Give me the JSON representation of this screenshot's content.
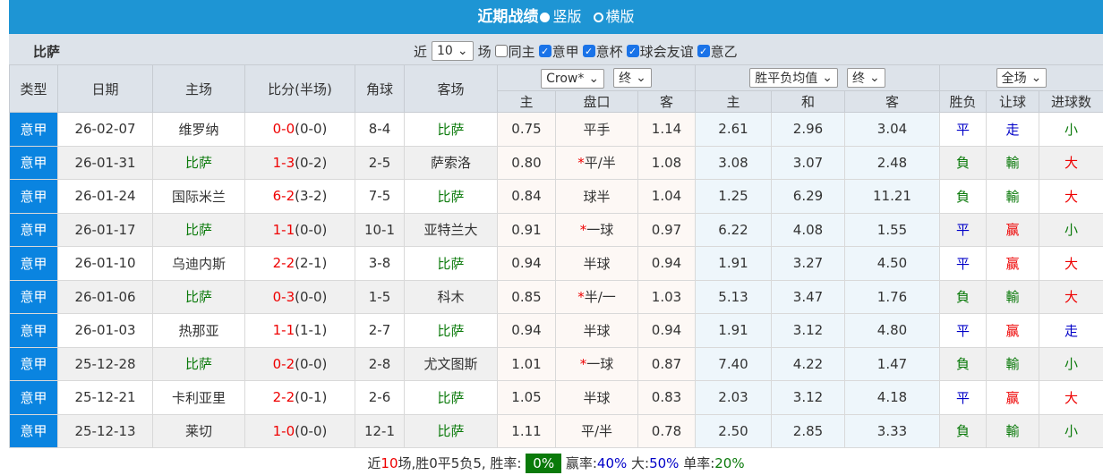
{
  "title": "近期战绩",
  "view_options": [
    {
      "label": "竖版",
      "selected": true
    },
    {
      "label": "横版",
      "selected": false
    }
  ],
  "filter": {
    "team": "比萨",
    "prefix": "近",
    "count": "10",
    "suffix": "场",
    "checkboxes": [
      {
        "label": "同主",
        "checked": false
      },
      {
        "label": "意甲",
        "checked": true
      },
      {
        "label": "意杯",
        "checked": true
      },
      {
        "label": "球会友谊",
        "checked": true
      },
      {
        "label": "意乙",
        "checked": true
      }
    ]
  },
  "headers": {
    "type": "类型",
    "date": "日期",
    "home": "主场",
    "score": "比分(半场)",
    "corner": "角球",
    "away": "客场",
    "company": "Crow*",
    "odds_time1": "终",
    "avg": "胜平负均值",
    "odds_time2": "终",
    "period": "全场",
    "sub": [
      "主",
      "盘口",
      "客",
      "主",
      "和",
      "客",
      "胜负",
      "让球",
      "进球数"
    ]
  },
  "rows": [
    [
      "意甲",
      "26-02-07",
      "维罗纳",
      "0-0",
      "(0-0)",
      "8-4",
      "比萨",
      "0.75",
      "",
      "平手",
      "1.14",
      "2.61",
      "2.96",
      "3.04",
      "平",
      "走",
      "小"
    ],
    [
      "意甲",
      "26-01-31",
      "比萨",
      "1-3",
      "(0-2)",
      "2-5",
      "萨索洛",
      "0.80",
      "*",
      "平/半",
      "1.08",
      "3.08",
      "3.07",
      "2.48",
      "負",
      "輸",
      "大"
    ],
    [
      "意甲",
      "26-01-24",
      "国际米兰",
      "6-2",
      "(3-2)",
      "7-5",
      "比萨",
      "0.84",
      "",
      "球半",
      "1.04",
      "1.25",
      "6.29",
      "11.21",
      "負",
      "輸",
      "大"
    ],
    [
      "意甲",
      "26-01-17",
      "比萨",
      "1-1",
      "(0-0)",
      "10-1",
      "亚特兰大",
      "0.91",
      "*",
      "一球",
      "0.97",
      "6.22",
      "4.08",
      "1.55",
      "平",
      "赢",
      "小"
    ],
    [
      "意甲",
      "26-01-10",
      "乌迪内斯",
      "2-2",
      "(2-1)",
      "3-8",
      "比萨",
      "0.94",
      "",
      "半球",
      "0.94",
      "1.91",
      "3.27",
      "4.50",
      "平",
      "赢",
      "大"
    ],
    [
      "意甲",
      "26-01-06",
      "比萨",
      "0-3",
      "(0-0)",
      "1-5",
      "科木",
      "0.85",
      "*",
      "半/一",
      "1.03",
      "5.13",
      "3.47",
      "1.76",
      "負",
      "輸",
      "大"
    ],
    [
      "意甲",
      "26-01-03",
      "热那亚",
      "1-1",
      "(1-1)",
      "2-7",
      "比萨",
      "0.94",
      "",
      "半球",
      "0.94",
      "1.91",
      "3.12",
      "4.80",
      "平",
      "赢",
      "走"
    ],
    [
      "意甲",
      "25-12-28",
      "比萨",
      "0-2",
      "(0-0)",
      "2-8",
      "尤文图斯",
      "1.01",
      "*",
      "一球",
      "0.87",
      "7.40",
      "4.22",
      "1.47",
      "負",
      "輸",
      "小"
    ],
    [
      "意甲",
      "25-12-21",
      "卡利亚里",
      "2-2",
      "(0-1)",
      "2-6",
      "比萨",
      "1.05",
      "",
      "半球",
      "0.83",
      "2.03",
      "3.12",
      "4.18",
      "平",
      "赢",
      "大"
    ],
    [
      "意甲",
      "25-12-13",
      "莱切",
      "1-0",
      "(0-0)",
      "12-1",
      "比萨",
      "1.11",
      "",
      "平/半",
      "0.78",
      "2.50",
      "2.85",
      "3.33",
      "負",
      "輸",
      "小"
    ]
  ],
  "footer": {
    "p1": "近",
    "n": "10",
    "p2": "场,胜0平5负5, 胜率:",
    "win_rate": "0%",
    "l1": "赢率:",
    "v1": "40%",
    "l2": " 大:",
    "v2": "50%",
    "l3": " 单率:",
    "v3": "20%"
  },
  "colors": {
    "title_bg": "#1e95d4",
    "type_bg": "#0a84e0",
    "team": "#0b7a0b",
    "win": "#e00",
    "draw": "#0000c8",
    "loss": "#0b7a0b"
  }
}
